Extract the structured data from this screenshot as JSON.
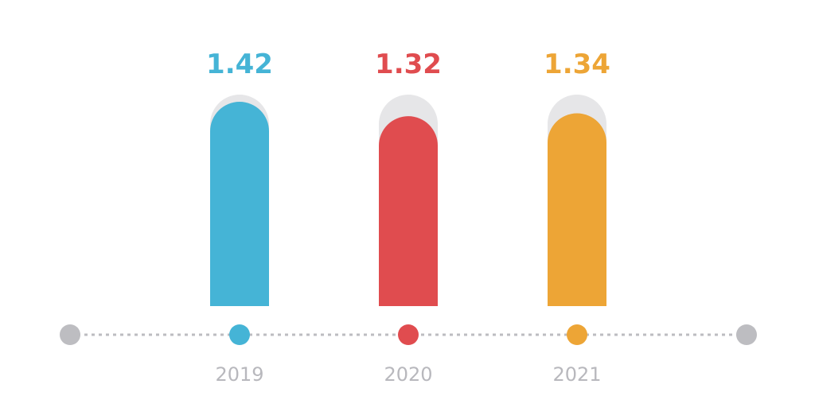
{
  "chart_data": {
    "type": "bar",
    "categories": [
      "2019",
      "2020",
      "2021"
    ],
    "values": [
      1.42,
      1.32,
      1.34
    ],
    "value_labels": [
      "1.42",
      "1.32",
      "1.34"
    ],
    "colors": [
      "#45b4d6",
      "#e04c4f",
      "#eda536"
    ],
    "track_color": "#e6e6e8",
    "timeline_color": "#bdbdc1",
    "title": "",
    "xlabel": "",
    "ylabel": "",
    "ylim": [
      0,
      1.47
    ],
    "grid": false,
    "legend": "none"
  }
}
